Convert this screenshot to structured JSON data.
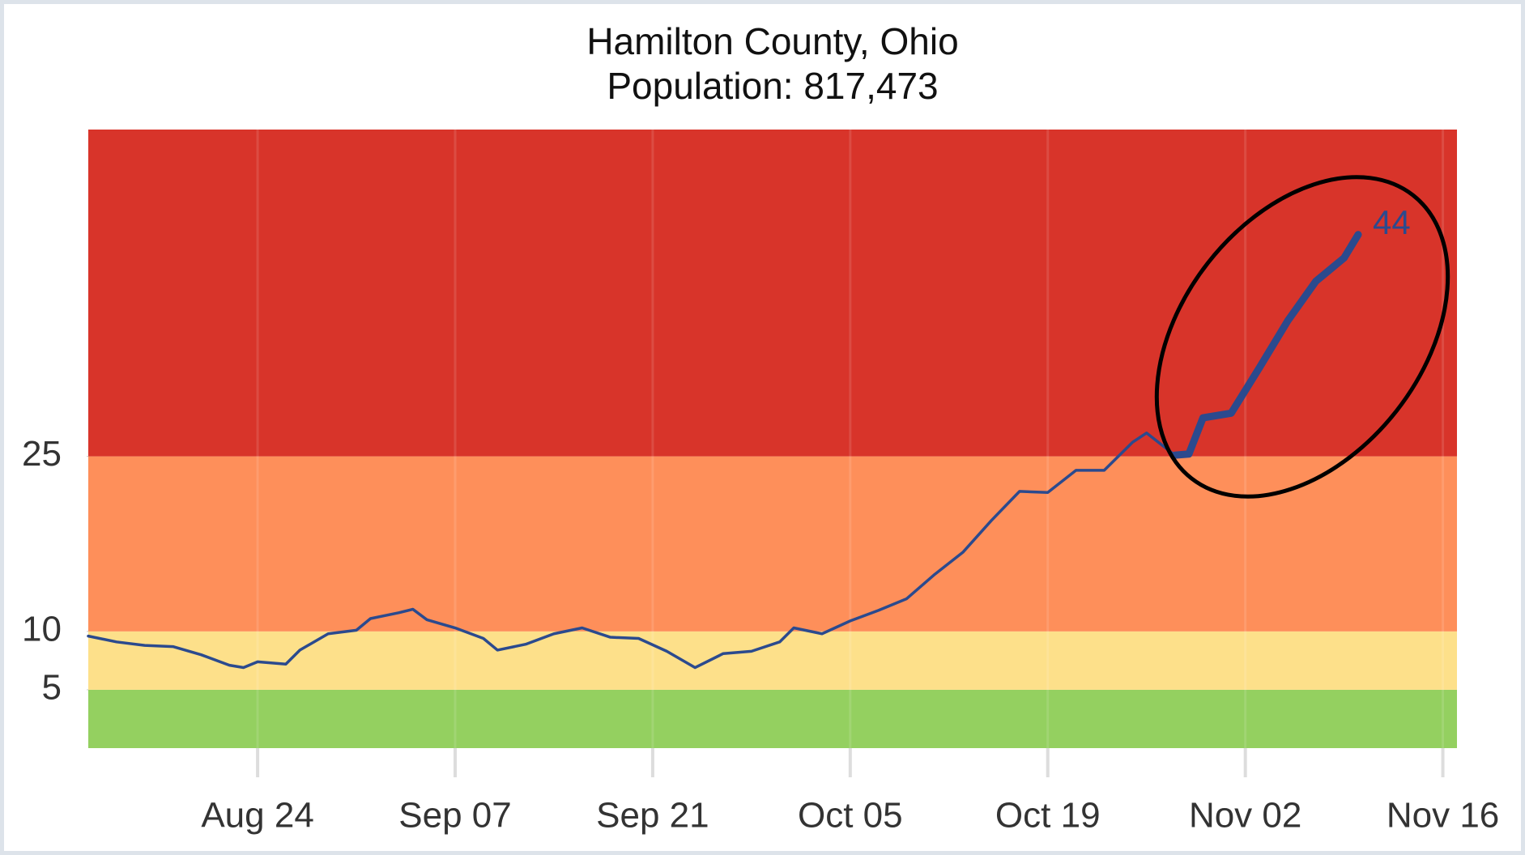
{
  "chart_data": {
    "type": "line",
    "title": "Hamilton County, Ohio",
    "subtitle": "Population: 817,473",
    "x": [
      "Aug 12",
      "Aug 14",
      "Aug 16",
      "Aug 18",
      "Aug 20",
      "Aug 22",
      "Aug 23",
      "Aug 24",
      "Aug 26",
      "Aug 27",
      "Aug 29",
      "Aug 31",
      "Sep 01",
      "Sep 03",
      "Sep 04",
      "Sep 05",
      "Sep 07",
      "Sep 09",
      "Sep 10",
      "Sep 12",
      "Sep 14",
      "Sep 16",
      "Sep 18",
      "Sep 20",
      "Sep 22",
      "Sep 24",
      "Sep 26",
      "Sep 28",
      "Sep 30",
      "Oct 01",
      "Oct 03",
      "Oct 05",
      "Oct 07",
      "Oct 09",
      "Oct 11",
      "Oct 13",
      "Oct 15",
      "Oct 17",
      "Oct 19",
      "Oct 21",
      "Oct 23",
      "Oct 25",
      "Oct 26",
      "Oct 28",
      "Oct 29",
      "Oct 30",
      "Nov 01",
      "Nov 03",
      "Nov 05",
      "Nov 07",
      "Nov 09",
      "Nov 10"
    ],
    "values": [
      9.6,
      9.1,
      8.8,
      8.7,
      8.0,
      7.1,
      6.9,
      7.4,
      7.2,
      8.4,
      9.8,
      10.1,
      11.1,
      11.6,
      11.9,
      11.0,
      10.3,
      9.4,
      8.4,
      8.9,
      9.8,
      10.3,
      9.5,
      9.4,
      8.3,
      6.9,
      8.1,
      8.3,
      9.1,
      10.3,
      9.8,
      10.9,
      11.8,
      12.8,
      14.9,
      16.8,
      19.5,
      22.0,
      21.9,
      23.8,
      23.8,
      26.2,
      27.0,
      25.1,
      25.2,
      28.3,
      28.7,
      32.6,
      36.6,
      40.0,
      42.0,
      44
    ],
    "color": "#2b4a8e",
    "highlight_from": "Oct 28",
    "end_label": true,
    "bands": [
      {
        "from": 0,
        "to": 5,
        "color": "#94d060"
      },
      {
        "from": 5,
        "to": 10,
        "color": "#fde08a"
      },
      {
        "from": 10,
        "to": 25,
        "color": "#fe8f5a"
      },
      {
        "from": 25,
        "to": 53,
        "color": "#d8342a"
      }
    ],
    "xlim": [
      "Aug 12",
      "Nov 17"
    ],
    "xticks": [
      "Aug 24",
      "Sep 07",
      "Sep 21",
      "Oct 05",
      "Oct 19",
      "Nov 02",
      "Nov 16"
    ],
    "ylim": [
      0,
      53
    ],
    "yticks": [
      5,
      10,
      25
    ],
    "grid": true
  }
}
